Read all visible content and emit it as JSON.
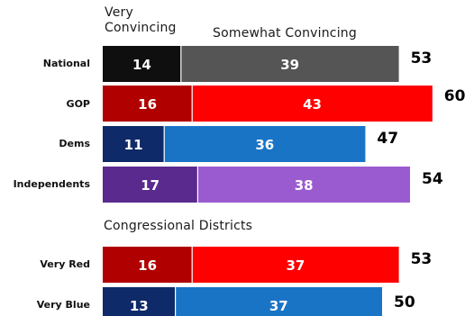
{
  "legend": {
    "very_line1": "Very",
    "very_line2": "Convincing",
    "somewhat": "Somewhat Convincing"
  },
  "section_label": "Congressional Districts",
  "colors": {
    "national_dark": "#0f0f0f",
    "national_light": "#555555",
    "gop_dark": "#b00000",
    "gop_light": "#fe0000",
    "dems_dark": "#0f2a68",
    "dems_light": "#1a74c6",
    "ind_dark": "#5b2a8f",
    "ind_light": "#9b5bd0"
  },
  "chart_data": {
    "type": "bar",
    "stacked": true,
    "orientation": "horizontal",
    "categories": [
      "National",
      "GOP",
      "Dems",
      "Independents",
      "Very Red",
      "Very Blue"
    ],
    "series": [
      {
        "name": "Very Convincing",
        "values": [
          14,
          16,
          11,
          17,
          16,
          13
        ]
      },
      {
        "name": "Somewhat Convincing",
        "values": [
          39,
          43,
          36,
          38,
          37,
          37
        ]
      }
    ],
    "totals": [
      53,
      60,
      47,
      54,
      53,
      50
    ],
    "groups": [
      {
        "label": "",
        "categories": [
          "National",
          "GOP",
          "Dems",
          "Independents"
        ]
      },
      {
        "label": "Congressional Districts",
        "categories": [
          "Very Red",
          "Very Blue"
        ]
      }
    ],
    "title": "",
    "xlabel": "",
    "ylabel": "",
    "grid": false,
    "legend_placement": "top"
  }
}
